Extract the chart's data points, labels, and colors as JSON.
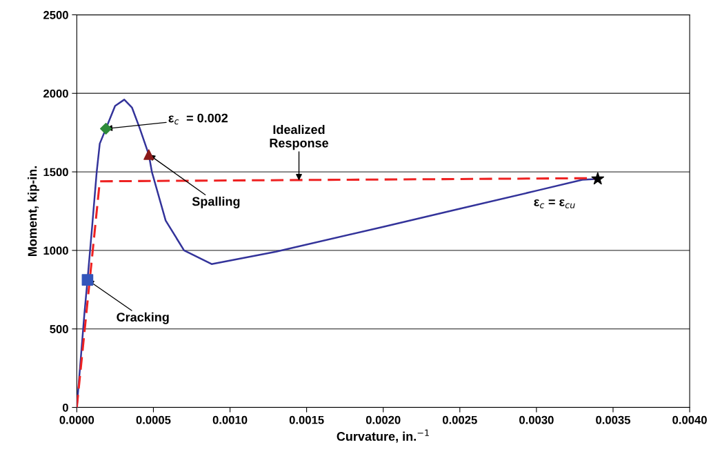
{
  "chart_data": {
    "type": "line",
    "xlabel": "Curvature, in.$^{−1}$",
    "ylabel": "Moment, kip-in.",
    "xlim": [
      0,
      0.004
    ],
    "ylim": [
      0,
      2500
    ],
    "xticks": [
      {
        "value": 0,
        "label": "0.0000"
      },
      {
        "value": 0.0005,
        "label": "0.0005"
      },
      {
        "value": 0.001,
        "label": "0.0010"
      },
      {
        "value": 0.0015,
        "label": "0.0015"
      },
      {
        "value": 0.002,
        "label": "0.0020"
      },
      {
        "value": 0.0025,
        "label": "0.0025"
      },
      {
        "value": 0.003,
        "label": "0.0030"
      },
      {
        "value": 0.0035,
        "label": "0.0035"
      },
      {
        "value": 0.004,
        "label": "0.0040"
      }
    ],
    "yticks": [
      0,
      500,
      1000,
      1500,
      2000,
      2500
    ],
    "grid": "y",
    "legend": false,
    "series": [
      {
        "color": "#33339a",
        "line_style": "solid",
        "marker": "none",
        "x": [
          0,
          5e-05,
          7e-05,
          0.0001,
          0.00013,
          0.00015,
          0.00019,
          0.00025,
          0.00031,
          0.00036,
          0.00041,
          0.00047,
          0.00049,
          0.00058,
          0.0007,
          0.00088,
          0.0013,
          0.002,
          0.0025,
          0.003,
          0.0033,
          0.0034
        ],
        "values": [
          0,
          600,
          812,
          1150,
          1500,
          1680,
          1775,
          1920,
          1960,
          1910,
          1780,
          1610,
          1500,
          1190,
          1000,
          913,
          992,
          1150,
          1265,
          1380,
          1450,
          1455
        ]
      },
      {
        "color": "#ee2222",
        "line_style": "dashed",
        "marker": "none",
        "x": [
          0,
          0.00015,
          0.0034
        ],
        "values": [
          0,
          1440,
          1460
        ]
      },
      {
        "type": "scatter",
        "color": "#3355bb",
        "marker": "square",
        "x": [
          7e-05
        ],
        "values": [
          812
        ]
      },
      {
        "type": "scatter",
        "color": "#2e8b3a",
        "marker": "diamond",
        "x": [
          0.00019
        ],
        "values": [
          1775
        ]
      },
      {
        "type": "scatter",
        "color": "#8b1a1a",
        "marker": "triangle",
        "x": [
          0.00047
        ],
        "values": [
          1610
        ]
      },
      {
        "type": "scatter",
        "color": "#000000",
        "marker": "star",
        "x": [
          0.0034
        ],
        "values": [
          1455
        ]
      }
    ],
    "annotations": [
      {
        "text": "Cracking",
        "x": 7e-05,
        "y": 812
      },
      {
        "text": "ε$_{c}$  = 0.002",
        "x": 0.00019,
        "y": 1775
      },
      {
        "text": "Spalling",
        "x": 0.00047,
        "y": 1610
      },
      {
        "text": "Idealized\nResponse",
        "x": 0.00145,
        "y": 1445
      },
      {
        "text": "ε$_{c}$ = ε$_{cu}$",
        "x": 0.0034,
        "y": 1455
      }
    ]
  }
}
